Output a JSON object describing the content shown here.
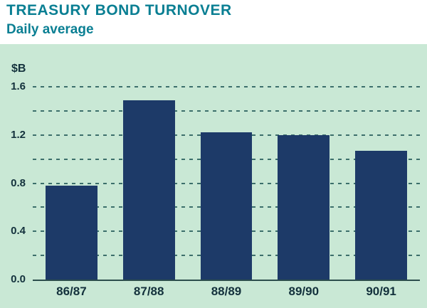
{
  "page": {
    "title": "TREASURY BOND TURNOVER",
    "subtitle": "Daily average"
  },
  "colors": {
    "title_text": "#0a7f93",
    "panel_background": "#c9e8d5",
    "bar_fill": "#1d3a68",
    "gridline": "#3c6f6b",
    "axis_text": "#13313c"
  },
  "chart_data": {
    "type": "bar",
    "title": "TREASURY BOND TURNOVER",
    "subtitle": "Daily average",
    "ylabel": "$B",
    "xlabel": "",
    "categories": [
      "86/87",
      "87/88",
      "88/89",
      "89/90",
      "90/91"
    ],
    "values": [
      0.78,
      1.49,
      1.22,
      1.2,
      1.07
    ],
    "ylim": [
      0,
      1.6
    ],
    "yticks": [
      0.0,
      0.4,
      0.8,
      1.2,
      1.6
    ],
    "gridline_step": 0.2,
    "grid": "dashed-horizontal",
    "legend": "none"
  }
}
